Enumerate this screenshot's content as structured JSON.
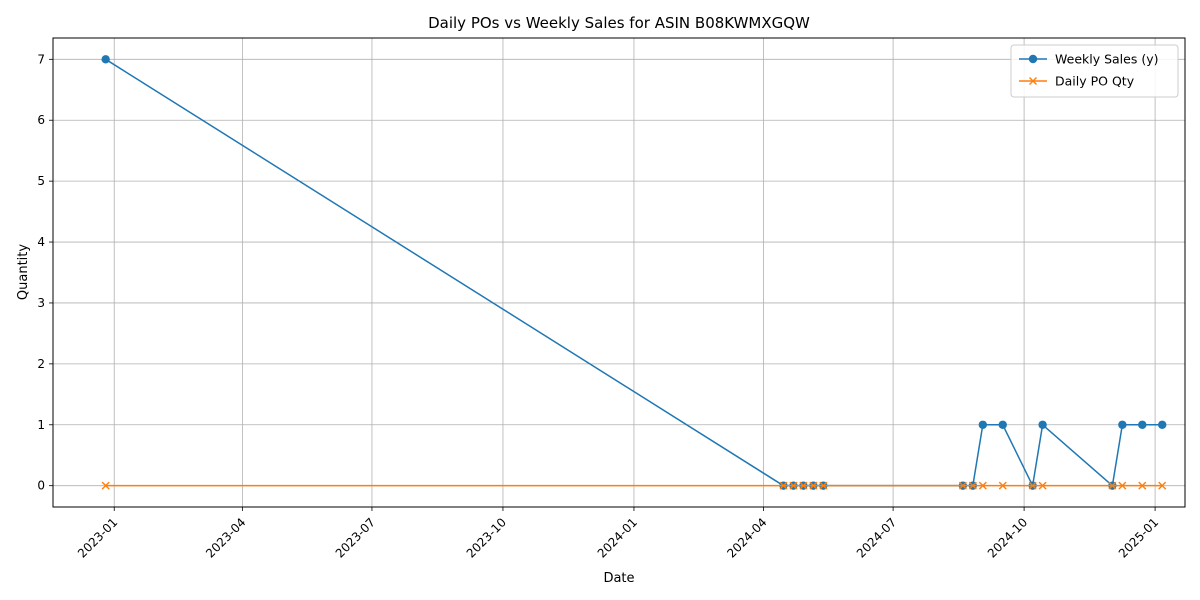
{
  "chart_data": {
    "type": "line",
    "title": "Daily POs vs Weekly Sales for ASIN B08KWMXGQW",
    "xlabel": "Date",
    "ylabel": "Quantity",
    "x_axis_type": "date",
    "xlim": [
      "2022-11-19",
      "2025-01-22"
    ],
    "ylim": [
      -0.35,
      7.35
    ],
    "x_ticks": [
      "2023-01-01",
      "2023-04-01",
      "2023-07-01",
      "2023-10-01",
      "2024-01-01",
      "2024-04-01",
      "2024-07-01",
      "2024-10-01",
      "2025-01-01"
    ],
    "x_tick_labels": [
      "2023-01",
      "2023-04",
      "2023-07",
      "2023-10",
      "2024-01",
      "2024-04",
      "2024-07",
      "2024-10",
      "2025-01"
    ],
    "y_ticks": [
      0,
      1,
      2,
      3,
      4,
      5,
      6,
      7
    ],
    "grid": true,
    "legend_position": "top-right",
    "series": [
      {
        "name": "Weekly Sales (y)",
        "color": "#1f77b4",
        "marker": "circle",
        "points": [
          {
            "x": "2022-12-26",
            "y": 7
          },
          {
            "x": "2024-04-15",
            "y": 0
          },
          {
            "x": "2024-04-22",
            "y": 0
          },
          {
            "x": "2024-04-29",
            "y": 0
          },
          {
            "x": "2024-05-06",
            "y": 0
          },
          {
            "x": "2024-05-13",
            "y": 0
          },
          {
            "x": "2024-08-19",
            "y": 0
          },
          {
            "x": "2024-08-26",
            "y": 0
          },
          {
            "x": "2024-09-02",
            "y": 1
          },
          {
            "x": "2024-09-16",
            "y": 1
          },
          {
            "x": "2024-10-07",
            "y": 0
          },
          {
            "x": "2024-10-14",
            "y": 1
          },
          {
            "x": "2024-12-02",
            "y": 0
          },
          {
            "x": "2024-12-09",
            "y": 1
          },
          {
            "x": "2024-12-23",
            "y": 1
          },
          {
            "x": "2025-01-06",
            "y": 1
          }
        ]
      },
      {
        "name": "Daily PO Qty",
        "color": "#ff7f0e",
        "marker": "x",
        "points": [
          {
            "x": "2022-12-26",
            "y": 0
          },
          {
            "x": "2024-04-15",
            "y": 0
          },
          {
            "x": "2024-04-22",
            "y": 0
          },
          {
            "x": "2024-04-29",
            "y": 0
          },
          {
            "x": "2024-05-06",
            "y": 0
          },
          {
            "x": "2024-05-13",
            "y": 0
          },
          {
            "x": "2024-08-19",
            "y": 0
          },
          {
            "x": "2024-08-26",
            "y": 0
          },
          {
            "x": "2024-09-02",
            "y": 0
          },
          {
            "x": "2024-09-16",
            "y": 0
          },
          {
            "x": "2024-10-07",
            "y": 0
          },
          {
            "x": "2024-10-14",
            "y": 0
          },
          {
            "x": "2024-12-02",
            "y": 0
          },
          {
            "x": "2024-12-09",
            "y": 0
          },
          {
            "x": "2024-12-23",
            "y": 0
          },
          {
            "x": "2025-01-06",
            "y": 0
          }
        ]
      }
    ]
  }
}
